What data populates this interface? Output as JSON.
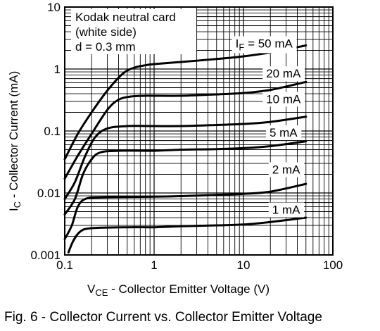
{
  "caption": "Fig. 6 - Collector Current vs. Collector Emitter Voltage",
  "chart_data": {
    "type": "line",
    "xscale": "log",
    "yscale": "log",
    "xlim": [
      0.1,
      100
    ],
    "ylim": [
      0.001,
      10
    ],
    "grid": true,
    "xticks": [
      {
        "v": 0.1,
        "label": "0.1"
      },
      {
        "v": 1,
        "label": "1"
      },
      {
        "v": 10,
        "label": "10"
      },
      {
        "v": 100,
        "label": "100"
      }
    ],
    "yticks": [
      {
        "v": 0.001,
        "label": "0.001"
      },
      {
        "v": 0.01,
        "label": "0.01"
      },
      {
        "v": 0.1,
        "label": "0.1"
      },
      {
        "v": 1,
        "label": "1"
      },
      {
        "v": 10,
        "label": "10"
      }
    ],
    "xlabel": {
      "main": "V",
      "sub": "CE",
      "rest": " - Collector Emitter Voltage (V)"
    },
    "ylabel": {
      "main": "I",
      "sub": "C",
      "rest": " - Collector Current (mA)"
    },
    "annotation_lines": [
      "Kodak neutral card",
      "(white side)",
      "d = 0.3 mm"
    ],
    "series": [
      {
        "name": "I",
        "name_sub": "F",
        "name_rest": " = 50 mA",
        "label_at": [
          17,
          2.6
        ],
        "points": [
          [
            0.1,
            0.035
          ],
          [
            0.14,
            0.09
          ],
          [
            0.2,
            0.2
          ],
          [
            0.3,
            0.45
          ],
          [
            0.45,
            0.85
          ],
          [
            0.6,
            1.05
          ],
          [
            0.8,
            1.15
          ],
          [
            1,
            1.2
          ],
          [
            2,
            1.3
          ],
          [
            5,
            1.45
          ],
          [
            10,
            1.6
          ],
          [
            20,
            1.85
          ],
          [
            50,
            2.4
          ]
        ]
      },
      {
        "name": "20 mA",
        "label_at": [
          28,
          0.85
        ],
        "points": [
          [
            0.1,
            0.017
          ],
          [
            0.14,
            0.04
          ],
          [
            0.2,
            0.09
          ],
          [
            0.3,
            0.22
          ],
          [
            0.4,
            0.32
          ],
          [
            0.55,
            0.36
          ],
          [
            0.8,
            0.37
          ],
          [
            1,
            0.37
          ],
          [
            2,
            0.37
          ],
          [
            5,
            0.39
          ],
          [
            10,
            0.41
          ],
          [
            20,
            0.46
          ],
          [
            50,
            0.62
          ]
        ]
      },
      {
        "name": "10 mA",
        "label_at": [
          28,
          0.33
        ],
        "points": [
          [
            0.1,
            0.008
          ],
          [
            0.13,
            0.015
          ],
          [
            0.17,
            0.04
          ],
          [
            0.22,
            0.08
          ],
          [
            0.3,
            0.11
          ],
          [
            0.5,
            0.12
          ],
          [
            1,
            0.12
          ],
          [
            2,
            0.12
          ],
          [
            5,
            0.125
          ],
          [
            10,
            0.13
          ],
          [
            20,
            0.14
          ],
          [
            50,
            0.17
          ]
        ]
      },
      {
        "name": "5 mA",
        "label_at": [
          28,
          0.095
        ],
        "points": [
          [
            0.1,
            0.0045
          ],
          [
            0.13,
            0.008
          ],
          [
            0.16,
            0.02
          ],
          [
            0.2,
            0.035
          ],
          [
            0.25,
            0.045
          ],
          [
            0.4,
            0.048
          ],
          [
            1,
            0.048
          ],
          [
            2,
            0.05
          ],
          [
            5,
            0.051
          ],
          [
            10,
            0.053
          ],
          [
            20,
            0.057
          ],
          [
            50,
            0.068
          ]
        ]
      },
      {
        "name": "2 mA",
        "label_at": [
          30,
          0.024
        ],
        "points": [
          [
            0.1,
            0.0018
          ],
          [
            0.12,
            0.003
          ],
          [
            0.14,
            0.006
          ],
          [
            0.17,
            0.008
          ],
          [
            0.25,
            0.0085
          ],
          [
            1,
            0.0087
          ],
          [
            2,
            0.0089
          ],
          [
            5,
            0.0093
          ],
          [
            10,
            0.0097
          ],
          [
            20,
            0.0105
          ],
          [
            50,
            0.014
          ]
        ]
      },
      {
        "name": "1 mA",
        "label_at": [
          30,
          0.0054
        ],
        "points": [
          [
            0.11,
            0.0011
          ],
          [
            0.125,
            0.0017
          ],
          [
            0.15,
            0.0024
          ],
          [
            0.2,
            0.0027
          ],
          [
            0.5,
            0.0028
          ],
          [
            1,
            0.0028
          ],
          [
            2,
            0.0029
          ],
          [
            5,
            0.003
          ],
          [
            10,
            0.0031
          ],
          [
            20,
            0.0034
          ],
          [
            50,
            0.004
          ]
        ]
      }
    ]
  }
}
